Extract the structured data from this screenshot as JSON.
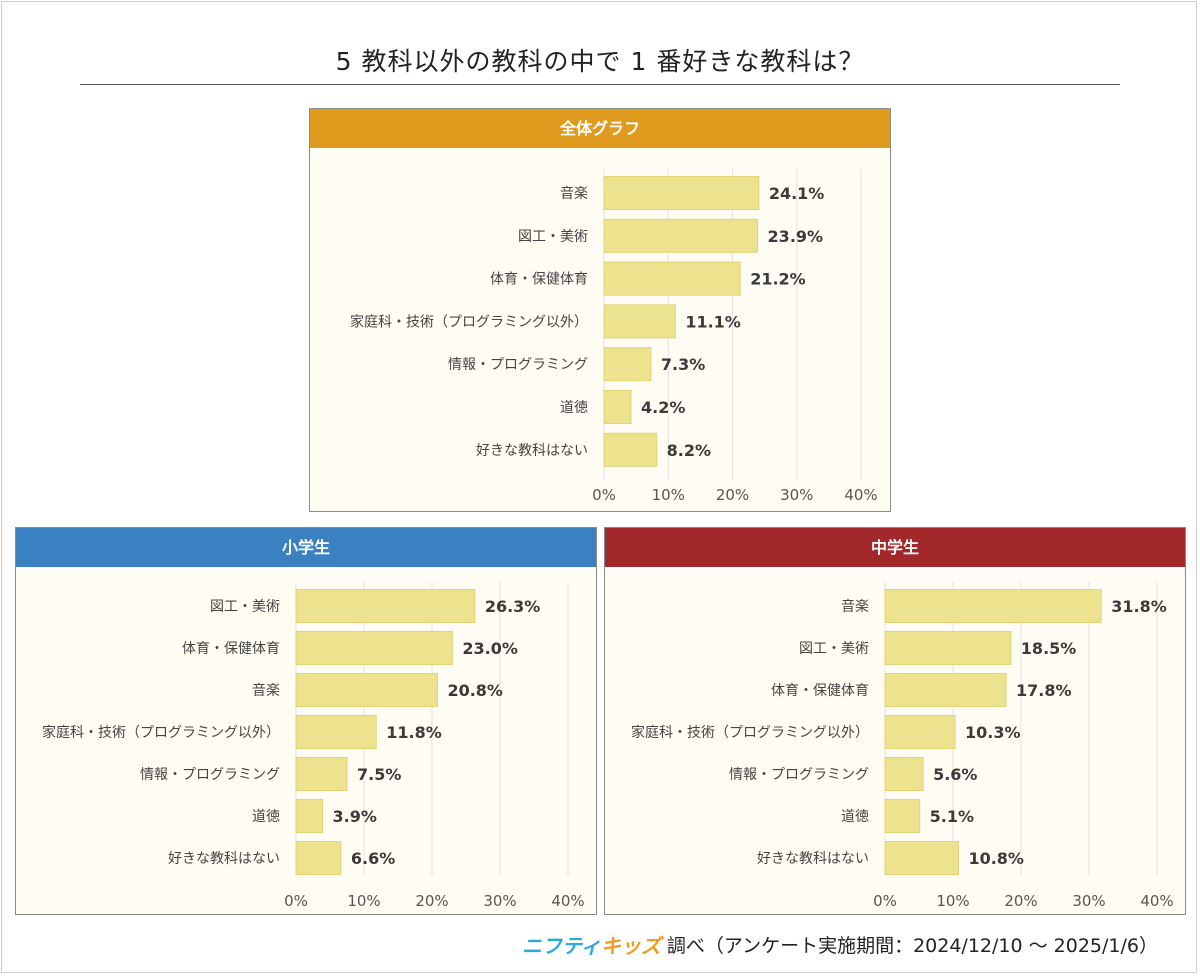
{
  "page": {
    "title": "5 教科以外の教科の中で 1 番好きな教科は？",
    "footer": {
      "brand_part1": "ニフティ",
      "brand_part2": "キッズ",
      "note": "調べ（アンケート実施期間：2024/12/10 ～ 2025/1/6）"
    }
  },
  "colors": {
    "bar": "#ede28e",
    "bar_edge": "#e3d377",
    "header_all": "#e09b1e",
    "header_elementary": "#3b80c0",
    "header_middle": "#a2282c",
    "grid": "#e2e2e2"
  },
  "chart_data": [
    {
      "id": "all",
      "type": "bar",
      "orientation": "horizontal",
      "title": "全体グラフ",
      "categories": [
        "音楽",
        "図工・美術",
        "体育・保健体育",
        "家庭科・技術（プログラミング以外）",
        "情報・プログラミング",
        "道徳",
        "好きな教科はない"
      ],
      "values": [
        24.1,
        23.9,
        21.2,
        11.1,
        7.3,
        4.2,
        8.2
      ],
      "value_labels": [
        "24.1%",
        "23.9%",
        "21.2%",
        "11.1%",
        "7.3%",
        "4.2%",
        "8.2%"
      ],
      "xlim": [
        0,
        40
      ],
      "xticks": [
        "0%",
        "10%",
        "20%",
        "30%",
        "40%"
      ],
      "grid": true
    },
    {
      "id": "elementary",
      "type": "bar",
      "orientation": "horizontal",
      "title": "小学生",
      "categories": [
        "図工・美術",
        "体育・保健体育",
        "音楽",
        "家庭科・技術（プログラミング以外）",
        "情報・プログラミング",
        "道徳",
        "好きな教科はない"
      ],
      "values": [
        26.3,
        23.0,
        20.8,
        11.8,
        7.5,
        3.9,
        6.6
      ],
      "value_labels": [
        "26.3%",
        "23.0%",
        "20.8%",
        "11.8%",
        "7.5%",
        "3.9%",
        "6.6%"
      ],
      "xlim": [
        0,
        40
      ],
      "xticks": [
        "0%",
        "10%",
        "20%",
        "30%",
        "40%"
      ],
      "grid": true
    },
    {
      "id": "middle",
      "type": "bar",
      "orientation": "horizontal",
      "title": "中学生",
      "categories": [
        "音楽",
        "図工・美術",
        "体育・保健体育",
        "家庭科・技術（プログラミング以外）",
        "情報・プログラミング",
        "道徳",
        "好きな教科はない"
      ],
      "values": [
        31.8,
        18.5,
        17.8,
        10.3,
        5.6,
        5.1,
        10.8
      ],
      "value_labels": [
        "31.8%",
        "18.5%",
        "17.8%",
        "10.3%",
        "5.6%",
        "5.1%",
        "10.8%"
      ],
      "xlim": [
        0,
        40
      ],
      "xticks": [
        "0%",
        "10%",
        "20%",
        "30%",
        "40%"
      ],
      "grid": true
    }
  ]
}
